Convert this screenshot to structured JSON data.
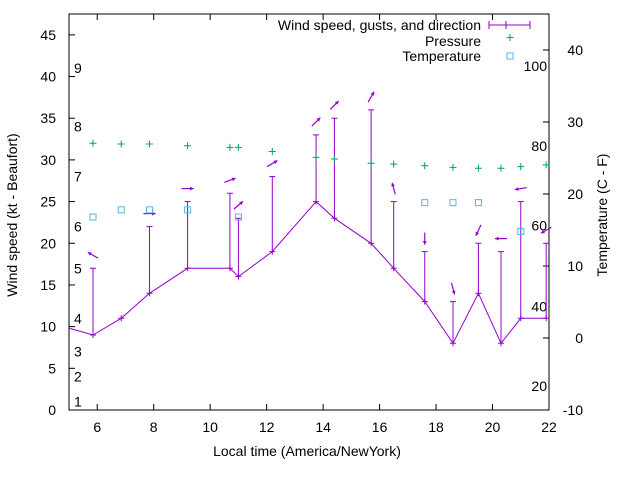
{
  "chart_data": {
    "type": "line",
    "title": "",
    "xlabel": "Local time (America/NewYork)",
    "ylabel": "Wind speed (kt - Beaufort)",
    "y2label": "Temperature (C - F)",
    "xlim": [
      5,
      22
    ],
    "ylim": [
      0,
      47.5
    ],
    "y2lim": [
      -10,
      45
    ],
    "x_ticks": [
      "6",
      "8",
      "10",
      "12",
      "14",
      "16",
      "18",
      "20",
      "22"
    ],
    "y_ticks": [
      "0",
      "5",
      "10",
      "15",
      "20",
      "25",
      "30",
      "35",
      "40",
      "45"
    ],
    "y2_ticks": [
      "-10",
      "0",
      "10",
      "20",
      "30",
      "40"
    ],
    "beaufort_labels": [
      {
        "label": "1",
        "y": 1
      },
      {
        "label": "2",
        "y": 4
      },
      {
        "label": "3",
        "y": 7
      },
      {
        "label": "4",
        "y": 11
      },
      {
        "label": "5",
        "y": 17
      },
      {
        "label": "6",
        "y": 22
      },
      {
        "label": "7",
        "y": 28
      },
      {
        "label": "8",
        "y": 34
      },
      {
        "label": "9",
        "y": 41
      }
    ],
    "fahrenheit_labels": [
      {
        "label": "20",
        "y2": -6.7
      },
      {
        "label": "40",
        "y2": 4.4
      },
      {
        "label": "60",
        "y2": 15.6
      },
      {
        "label": "80",
        "y2": 26.7
      },
      {
        "label": "100",
        "y2": 37.8
      }
    ],
    "legend_position": "top-right",
    "colors": {
      "wind": "#9400d3",
      "pressure": "#009e73",
      "temperature": "#56b4e9"
    },
    "series": [
      {
        "name": "Wind speed, gusts, and direction",
        "style": "line-errorbar-arrows",
        "x": [
          4.8,
          5.85,
          6.85,
          7.85,
          9.2,
          10.7,
          11.0,
          12.2,
          13.75,
          14.4,
          15.7,
          16.5,
          17.6,
          18.6,
          19.5,
          20.3,
          21.0,
          21.9
        ],
        "values": [
          10,
          9,
          11,
          14,
          17,
          17,
          16,
          19,
          25,
          23,
          20,
          17,
          13,
          8,
          14,
          8,
          11,
          11
        ],
        "gusts": [
          null,
          17,
          null,
          22,
          25,
          26,
          23,
          28,
          33,
          35,
          36,
          25,
          19,
          13,
          20,
          19,
          25,
          20
        ],
        "direction_deg": [
          null,
          240,
          90,
          90,
          90,
          110,
          130,
          120,
          135,
          135,
          150,
          195,
          0,
          15,
          335,
          270,
          280,
          300
        ]
      },
      {
        "name": "Pressure",
        "style": "points-plus",
        "x": [
          5.85,
          6.85,
          7.85,
          9.2,
          10.7,
          11.0,
          12.2,
          13.75,
          14.4,
          15.7,
          16.5,
          17.6,
          18.6,
          19.5,
          20.3,
          21.0,
          21.9
        ],
        "values": [
          32,
          31.9,
          31.9,
          31.7,
          31.5,
          31.5,
          31,
          30.3,
          30.1,
          29.6,
          29.5,
          29.3,
          29.1,
          29,
          29,
          29.2,
          29.4
        ]
      },
      {
        "name": "Temperature",
        "style": "points-square",
        "axis": "y2",
        "x": [
          5.85,
          6.85,
          7.85,
          9.2,
          11.0,
          17.6,
          18.6,
          19.5,
          21.0
        ],
        "values": [
          16.8,
          17.8,
          17.8,
          17.8,
          16.8,
          18.8,
          18.8,
          18.8,
          14.8
        ]
      }
    ]
  }
}
